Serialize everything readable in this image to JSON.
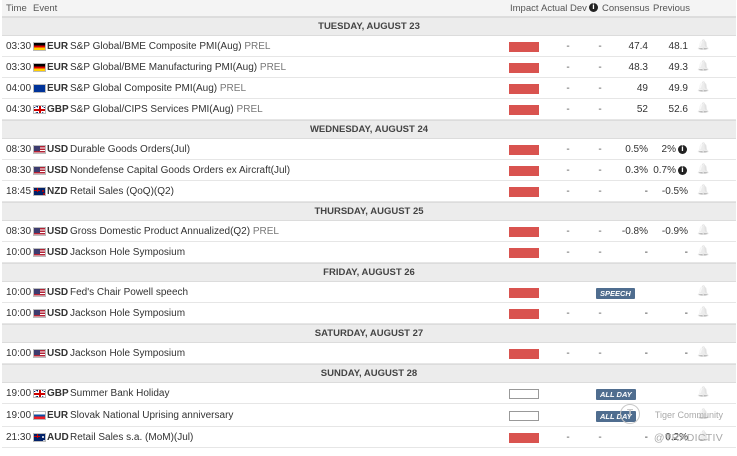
{
  "header": {
    "time": "Time",
    "event": "Event",
    "impact": "Impact",
    "actual": "Actual",
    "dev": "Dev",
    "consensus": "Consensus",
    "previous": "Previous",
    "info_glyph": "i"
  },
  "icons": {
    "bell": "🔔",
    "info": "i"
  },
  "colors": {
    "impact_high": "#d9534f",
    "badge": "#4f6d8f"
  },
  "days": [
    {
      "label": "TUESDAY, AUGUST 23",
      "events": [
        {
          "time": "03:30",
          "flag": "de",
          "currency": "EUR",
          "title": "S&P Global/BME Composite PMI(Aug)",
          "tag": "PREL",
          "impact": "high",
          "actual": "-",
          "dev": "-",
          "consensus": "47.4",
          "previous": "48.1"
        },
        {
          "time": "03:30",
          "flag": "de",
          "currency": "EUR",
          "title": "S&P Global/BME Manufacturing PMI(Aug)",
          "tag": "PREL",
          "impact": "high",
          "actual": "-",
          "dev": "-",
          "consensus": "48.3",
          "previous": "49.3"
        },
        {
          "time": "04:00",
          "flag": "eu",
          "currency": "EUR",
          "title": "S&P Global Composite PMI(Aug)",
          "tag": "PREL",
          "impact": "high",
          "actual": "-",
          "dev": "-",
          "consensus": "49",
          "previous": "49.9"
        },
        {
          "time": "04:30",
          "flag": "gb",
          "currency": "GBP",
          "title": "S&P Global/CIPS Services PMI(Aug)",
          "tag": "PREL",
          "impact": "high",
          "actual": "-",
          "dev": "-",
          "consensus": "52",
          "previous": "52.6"
        }
      ]
    },
    {
      "label": "WEDNESDAY, AUGUST 24",
      "events": [
        {
          "time": "08:30",
          "flag": "us",
          "currency": "USD",
          "title": "Durable Goods Orders(Jul)",
          "tag": "",
          "impact": "high",
          "actual": "-",
          "dev": "-",
          "consensus": "0.5%",
          "previous": "2%",
          "prev_info": true
        },
        {
          "time": "08:30",
          "flag": "us",
          "currency": "USD",
          "title": "Nondefense Capital Goods Orders ex Aircraft(Jul)",
          "tag": "",
          "impact": "high",
          "actual": "-",
          "dev": "-",
          "consensus": "0.3%",
          "previous": "0.7%",
          "prev_info": true
        },
        {
          "time": "18:45",
          "flag": "nz",
          "currency": "NZD",
          "title": "Retail Sales (QoQ)(Q2)",
          "tag": "",
          "impact": "high",
          "actual": "-",
          "dev": "-",
          "consensus": "-",
          "previous": "-0.5%"
        }
      ]
    },
    {
      "label": "THURSDAY, AUGUST 25",
      "events": [
        {
          "time": "08:30",
          "flag": "us",
          "currency": "USD",
          "title": "Gross Domestic Product Annualized(Q2)",
          "tag": "PREL",
          "impact": "high",
          "actual": "-",
          "dev": "-",
          "consensus": "-0.8%",
          "previous": "-0.9%"
        },
        {
          "time": "10:00",
          "flag": "us",
          "currency": "USD",
          "title": "Jackson Hole Symposium",
          "tag": "",
          "impact": "high",
          "actual": "-",
          "dev": "-",
          "consensus": "-",
          "previous": "-"
        }
      ]
    },
    {
      "label": "FRIDAY, AUGUST 26",
      "events": [
        {
          "time": "10:00",
          "flag": "us",
          "currency": "USD",
          "title": "Fed's Chair Powell speech",
          "tag": "",
          "impact": "high",
          "badge": "SPEECH"
        },
        {
          "time": "10:00",
          "flag": "us",
          "currency": "USD",
          "title": "Jackson Hole Symposium",
          "tag": "",
          "impact": "high",
          "actual": "-",
          "dev": "-",
          "consensus": "-",
          "previous": "-"
        }
      ]
    },
    {
      "label": "SATURDAY, AUGUST 27",
      "events": [
        {
          "time": "10:00",
          "flag": "us",
          "currency": "USD",
          "title": "Jackson Hole Symposium",
          "tag": "",
          "impact": "high",
          "actual": "-",
          "dev": "-",
          "consensus": "-",
          "previous": "-"
        }
      ]
    },
    {
      "label": "SUNDAY, AUGUST 28",
      "events": [
        {
          "time": "19:00",
          "flag": "gb",
          "currency": "GBP",
          "title": "Summer Bank Holiday",
          "tag": "",
          "impact": "none",
          "badge": "ALL DAY"
        },
        {
          "time": "19:00",
          "flag": "sk",
          "currency": "EUR",
          "title": "Slovak National Uprising anniversary",
          "tag": "",
          "impact": "none",
          "badge": "ALL DAY"
        },
        {
          "time": "21:30",
          "flag": "au",
          "currency": "AUD",
          "title": "Retail Sales s.a. (MoM)(Jul)",
          "tag": "",
          "impact": "high",
          "actual": "-",
          "dev": "-",
          "consensus": "-",
          "previous": "0.2%"
        }
      ]
    }
  ],
  "watermark": {
    "line1": "Tiger Community",
    "line2": "@TRADICTIV",
    "logo_glyph": "T"
  }
}
